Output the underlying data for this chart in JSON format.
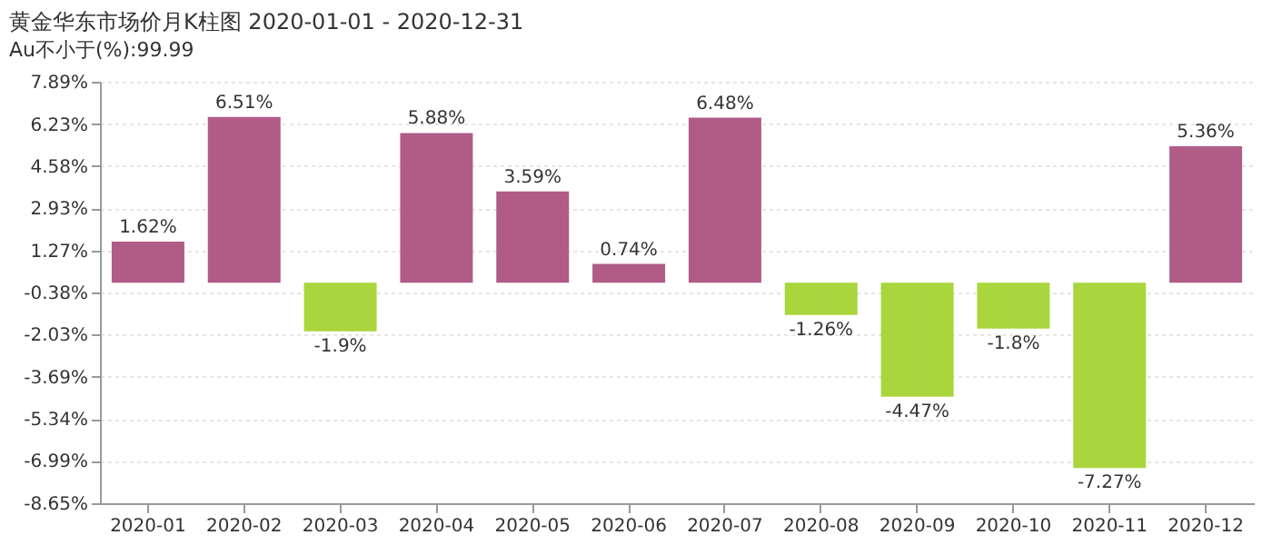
{
  "chart_data": {
    "type": "bar",
    "title": "黄金华东市场价月K柱图  2020-01-01 - 2020-12-31",
    "subtitle": "Au不小于(%):99.99",
    "categories": [
      "2020-01",
      "2020-02",
      "2020-03",
      "2020-04",
      "2020-05",
      "2020-06",
      "2020-07",
      "2020-08",
      "2020-09",
      "2020-10",
      "2020-11",
      "2020-12"
    ],
    "values": [
      1.62,
      6.51,
      -1.9,
      5.88,
      3.59,
      0.74,
      6.48,
      -1.26,
      -4.47,
      -1.8,
      -7.27,
      5.36
    ],
    "colors": [
      "#b05c87",
      "#b05c87",
      "#a9d63c",
      "#b05c87",
      "#b05c87",
      "#b05c87",
      "#b05c87",
      "#a9d63c",
      "#a9d63c",
      "#a9d63c",
      "#a9d63c",
      "#b05c87"
    ],
    "value_labels": [
      "1.62%",
      "6.51%",
      "-1.9%",
      "5.88%",
      "3.59%",
      "0.74%",
      "6.48%",
      "-1.26%",
      "-4.47%",
      "-1.8%",
      "-7.27%",
      "5.36%"
    ],
    "ylim": [
      -8.65,
      7.89
    ],
    "yticks": [
      {
        "value": 7.89,
        "label": "7.89%"
      },
      {
        "value": 6.23,
        "label": "6.23%"
      },
      {
        "value": 4.58,
        "label": "4.58%"
      },
      {
        "value": 2.93,
        "label": "2.93%"
      },
      {
        "value": 1.27,
        "label": "1.27%"
      },
      {
        "value": -0.38,
        "label": "-0.38%"
      },
      {
        "value": -2.03,
        "label": "-2.03%"
      },
      {
        "value": -3.69,
        "label": "-3.69%"
      },
      {
        "value": -5.34,
        "label": "-5.34%"
      },
      {
        "value": -6.99,
        "label": "-6.99%"
      },
      {
        "value": -8.65,
        "label": "-8.65%"
      }
    ],
    "grid": "y"
  }
}
